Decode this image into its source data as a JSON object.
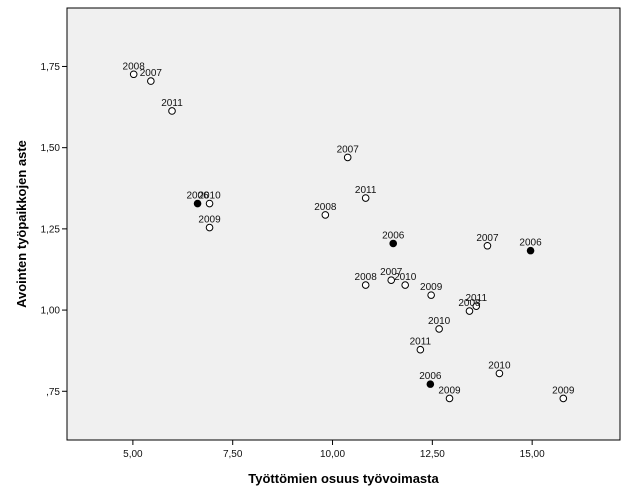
{
  "chart_data": {
    "type": "scatter",
    "title": "",
    "xlabel": "Työttömien osuus työvoimasta",
    "ylabel": "Avointen työpaikkojen aste",
    "xlim": [
      3.35,
      17.2
    ],
    "ylim": [
      0.6,
      1.93
    ],
    "xticks": [
      "5,00",
      "7,50",
      "10,00",
      "12,50",
      "15,00"
    ],
    "xtick_values": [
      5.0,
      7.5,
      10.0,
      12.5,
      15.0
    ],
    "yticks": [
      ",75",
      "1,00",
      "1,25",
      "1,50",
      "1,75"
    ],
    "ytick_values": [
      0.75,
      1.0,
      1.25,
      1.5,
      1.75
    ],
    "grid": false,
    "colors": {
      "plot_background": "#f0f0f0",
      "marker_open": "#ffffff",
      "marker_filled": "#000000",
      "marker_stroke": "#000000"
    },
    "points": [
      {
        "x": 5.02,
        "y": 1.726,
        "label": "2008",
        "filled": false
      },
      {
        "x": 5.45,
        "y": 1.705,
        "label": "2007",
        "filled": false
      },
      {
        "x": 5.98,
        "y": 1.613,
        "label": "2011",
        "filled": false
      },
      {
        "x": 6.62,
        "y": 1.328,
        "label": "2006",
        "filled": true
      },
      {
        "x": 6.92,
        "y": 1.328,
        "label": "2010",
        "filled": false
      },
      {
        "x": 6.92,
        "y": 1.254,
        "label": "2009",
        "filled": false
      },
      {
        "x": 10.38,
        "y": 1.47,
        "label": "2007",
        "filled": false
      },
      {
        "x": 10.83,
        "y": 1.345,
        "label": "2011",
        "filled": false
      },
      {
        "x": 9.82,
        "y": 1.293,
        "label": "2008",
        "filled": false
      },
      {
        "x": 11.52,
        "y": 1.205,
        "label": "2006",
        "filled": true
      },
      {
        "x": 10.83,
        "y": 1.077,
        "label": "2008",
        "filled": false
      },
      {
        "x": 11.47,
        "y": 1.092,
        "label": "2007",
        "filled": false
      },
      {
        "x": 11.82,
        "y": 1.077,
        "label": "2010",
        "filled": false
      },
      {
        "x": 12.47,
        "y": 1.046,
        "label": "2009",
        "filled": false
      },
      {
        "x": 13.88,
        "y": 1.198,
        "label": "2007",
        "filled": false
      },
      {
        "x": 14.96,
        "y": 1.183,
        "label": "2006",
        "filled": true
      },
      {
        "x": 13.6,
        "y": 1.012,
        "label": "2011",
        "filled": false
      },
      {
        "x": 13.43,
        "y": 0.997,
        "label": "2008",
        "filled": false
      },
      {
        "x": 12.67,
        "y": 0.942,
        "label": "2010",
        "filled": false
      },
      {
        "x": 12.2,
        "y": 0.878,
        "label": "2011",
        "filled": false
      },
      {
        "x": 14.18,
        "y": 0.805,
        "label": "2010",
        "filled": false
      },
      {
        "x": 12.45,
        "y": 0.772,
        "label": "2006",
        "filled": true
      },
      {
        "x": 12.93,
        "y": 0.728,
        "label": "2009",
        "filled": false
      },
      {
        "x": 15.78,
        "y": 0.728,
        "label": "2009",
        "filled": false
      }
    ]
  }
}
